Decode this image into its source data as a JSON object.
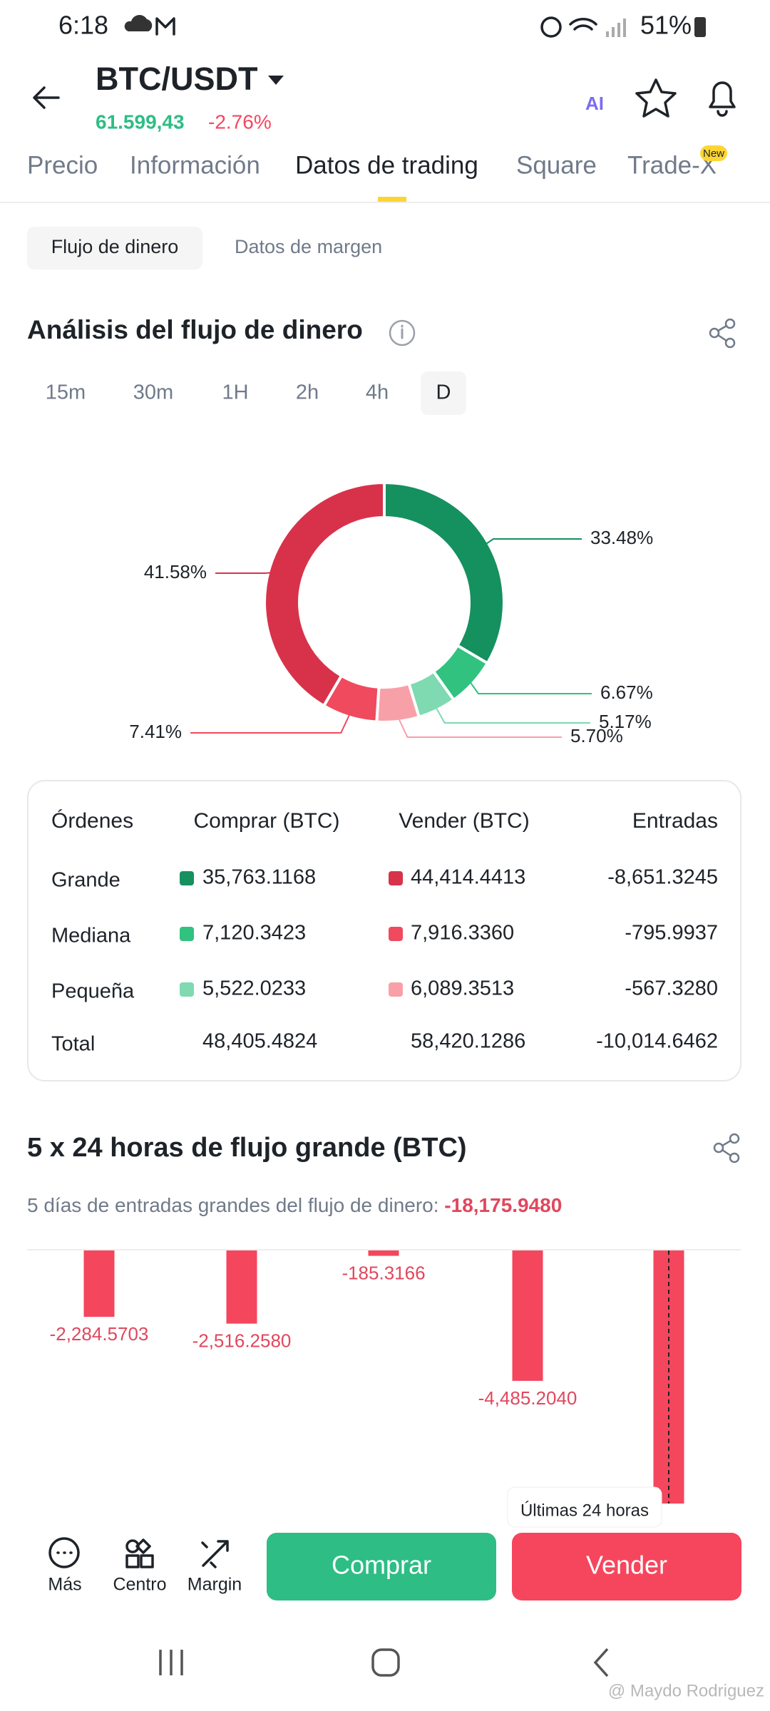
{
  "status_bar": {
    "time": "6:18",
    "battery": "51%"
  },
  "header": {
    "pair": "BTC/USDT",
    "price": "61.599,43",
    "change": "-2.76%",
    "ai_label": "AI"
  },
  "tabs": {
    "items": [
      "Precio",
      "Información",
      "Datos de trading",
      "Square",
      "Trade-X"
    ],
    "badge": "New"
  },
  "subtabs": [
    "Flujo de dinero",
    "Datos de margen"
  ],
  "flow_analysis": {
    "title": "Análisis del flujo de dinero",
    "intervals": [
      "15m",
      "30m",
      "1H",
      "2h",
      "4h",
      "D"
    ],
    "donut": {
      "type": "pie",
      "values": [
        33.48,
        6.67,
        5.17,
        5.7,
        7.41,
        41.58
      ],
      "value_labels": [
        "33.48%",
        "6.67%",
        "5.17%",
        "5.70%",
        "7.41%",
        "41.58%"
      ],
      "colors": [
        "#15905f",
        "#31c27f",
        "#7fd9b1",
        "#f8a0a8",
        "#ef4a5e",
        "#d8324b"
      ]
    }
  },
  "table": {
    "header": [
      "Órdenes",
      "Comprar (BTC)",
      "Vender (BTC)",
      "Entradas"
    ],
    "rows": [
      [
        "Grande",
        "35,763.1168",
        "44,414.4413",
        "-8,651.3245"
      ],
      [
        "Mediana",
        "7,120.3423",
        "7,916.3360",
        "-795.9937"
      ],
      [
        "Pequeña",
        "5,522.0233",
        "6,089.3513",
        "-567.3280"
      ],
      [
        "Total",
        "48,405.4824",
        "58,420.1286",
        "-10,014.6462"
      ]
    ]
  },
  "large_flow": {
    "title": "5 x 24 horas de flujo grande (BTC)",
    "summary_label": "5 días de entradas grandes del flujo de dinero:",
    "summary_value": "-18,175.9480",
    "chart": {
      "type": "bar",
      "values": [
        -2284.5703,
        -2516.258,
        -185.3166,
        -4485.204,
        -8704.6
      ],
      "value_labels": [
        "-2,284.5703",
        "-2,516.2580",
        "-185.3166",
        "-4,485.2040",
        null
      ],
      "color": "#f4465d",
      "tooltip": "Últimas 24 horas"
    }
  },
  "bottom_bar": {
    "items": [
      "Más",
      "Centro",
      "Margin"
    ],
    "buy": "Comprar",
    "sell": "Vender"
  },
  "watermark": "@ Maydo Rodriguez"
}
